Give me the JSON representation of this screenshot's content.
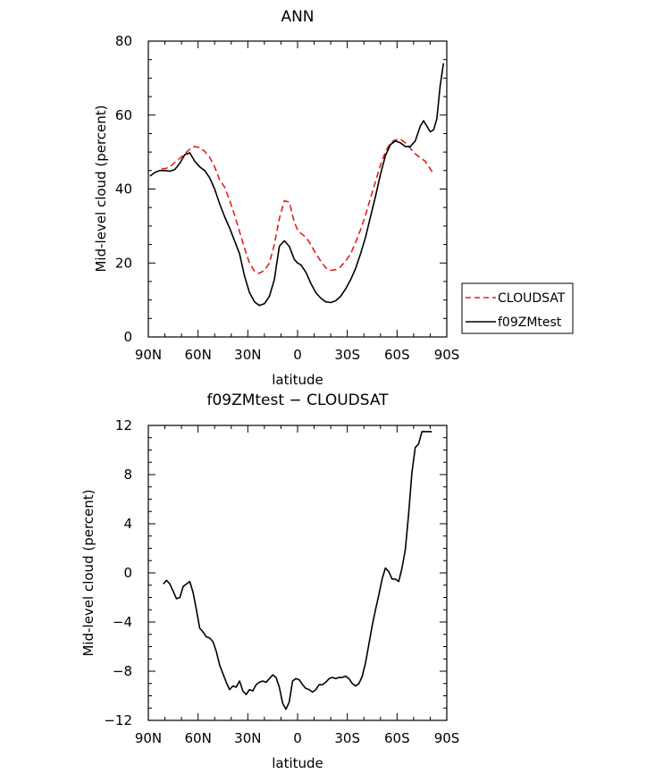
{
  "chart_data": [
    {
      "type": "line",
      "title": "ANN",
      "xlabel": "latitude",
      "ylabel": "Mid-level cloud (percent)",
      "xlim": [
        90,
        -90
      ],
      "ylim": [
        0,
        80
      ],
      "yticks": [
        0,
        20,
        40,
        60,
        80
      ],
      "xticks": [
        {
          "v": 90,
          "label": "90N"
        },
        {
          "v": 60,
          "label": "60N"
        },
        {
          "v": 30,
          "label": "30N"
        },
        {
          "v": 0,
          "label": "0"
        },
        {
          "v": -30,
          "label": "30S"
        },
        {
          "v": -60,
          "label": "60S"
        },
        {
          "v": -90,
          "label": "90S"
        }
      ],
      "legend_position": "outside-right",
      "series": [
        {
          "name": "CLOUDSAT",
          "color": "#e0201b",
          "dash": "dashed",
          "x": [
            82,
            80,
            77,
            74,
            71,
            68,
            65,
            62,
            59,
            56,
            53,
            50,
            47,
            44,
            41,
            38,
            35,
            32,
            29,
            26,
            23,
            20,
            17,
            14,
            11,
            8,
            5,
            2,
            0,
            -2,
            -5,
            -8,
            -11,
            -14,
            -17,
            -20,
            -23,
            -26,
            -29,
            -32,
            -35,
            -38,
            -41,
            -44,
            -47,
            -50,
            -53,
            -56,
            -59,
            -62,
            -65,
            -68,
            -71,
            -74,
            -77,
            -80,
            -82
          ],
          "y": [
            45.5,
            45.5,
            46,
            47.2,
            48.3,
            49.5,
            50.8,
            51.5,
            51.2,
            50.2,
            48.5,
            46,
            42.5,
            40.5,
            37,
            33,
            28.5,
            24,
            20,
            17.8,
            17.2,
            18,
            20,
            25,
            32,
            36.8,
            36.5,
            31,
            29,
            28,
            27,
            25,
            22.5,
            20.5,
            18.7,
            18,
            18.2,
            19,
            20.5,
            22.5,
            25.5,
            29,
            33,
            37.5,
            42,
            46.5,
            50,
            52.5,
            53.3,
            53.5,
            52.5,
            51,
            49.5,
            48.5,
            47.5,
            45.5,
            44
          ]
        },
        {
          "name": "f09ZMtest",
          "color": "#000000",
          "dash": "solid",
          "x": [
            89,
            86,
            83,
            80,
            77,
            74,
            71,
            68,
            65,
            62,
            59,
            56,
            53,
            50,
            47,
            44,
            41,
            38,
            35,
            32,
            29,
            26,
            23,
            20,
            17,
            14,
            11,
            8,
            5,
            2,
            0,
            -2,
            -5,
            -8,
            -11,
            -14,
            -17,
            -20,
            -23,
            -26,
            -29,
            -32,
            -35,
            -38,
            -41,
            -44,
            -47,
            -50,
            -53,
            -56,
            -59,
            -62,
            -65,
            -68,
            -71,
            -74,
            -76,
            -78,
            -80,
            -82,
            -84,
            -86,
            -88
          ],
          "y": [
            43.5,
            44.5,
            45,
            45,
            44.8,
            45.3,
            47,
            49.3,
            49.8,
            47.5,
            46,
            45,
            43,
            40,
            36,
            32.5,
            29.5,
            26,
            22.5,
            16.5,
            12,
            9.5,
            8.5,
            9,
            11,
            15.5,
            24.5,
            26,
            24.5,
            21,
            20,
            19.5,
            17.5,
            14.5,
            12,
            10.5,
            9.5,
            9.3,
            9.8,
            11,
            13,
            15.5,
            18.5,
            22.5,
            27,
            32.5,
            38,
            44,
            49,
            52,
            53,
            52.5,
            51.5,
            51.5,
            53,
            57,
            58.5,
            57,
            55.5,
            56,
            59,
            68,
            74
          ]
        }
      ]
    },
    {
      "type": "line",
      "title": "f09ZMtest  −  CLOUDSAT",
      "xlabel": "latitude",
      "ylabel": "Mid-level cloud (percent)",
      "xlim": [
        90,
        -90
      ],
      "ylim": [
        -12,
        12
      ],
      "yticks": [
        -12,
        -8,
        -4,
        0,
        4,
        8,
        12
      ],
      "ytick_labels": [
        "−12",
        "−8",
        "−4",
        "0",
        "4",
        "8",
        "12"
      ],
      "xticks": [
        {
          "v": 90,
          "label": "90N"
        },
        {
          "v": 60,
          "label": "60N"
        },
        {
          "v": 30,
          "label": "30N"
        },
        {
          "v": 0,
          "label": "0"
        },
        {
          "v": -30,
          "label": "30S"
        },
        {
          "v": -60,
          "label": "60S"
        },
        {
          "v": -90,
          "label": "90S"
        }
      ],
      "series": [
        {
          "color": "#000000",
          "dash": "solid",
          "x": [
            81,
            79,
            77,
            75,
            73,
            71,
            69,
            67,
            65,
            63,
            61,
            59,
            57,
            55,
            53,
            51,
            49,
            47,
            45,
            43,
            41,
            39,
            37,
            35,
            33,
            31,
            29,
            27,
            25,
            23,
            21,
            19,
            17,
            15,
            13,
            11,
            9,
            7,
            5,
            3,
            1,
            -1,
            -3,
            -5,
            -7,
            -9,
            -11,
            -13,
            -15,
            -17,
            -19,
            -21,
            -23,
            -25,
            -27,
            -29,
            -31,
            -33,
            -35,
            -37,
            -39,
            -41,
            -43,
            -45,
            -47,
            -49,
            -51,
            -53,
            -55,
            -57,
            -59,
            -61,
            -63,
            -65,
            -67,
            -69,
            -71,
            -73,
            -75,
            -77,
            -79,
            -81
          ],
          "y": [
            -0.9,
            -0.6,
            -0.9,
            -1.5,
            -2.1,
            -2.0,
            -1.1,
            -0.9,
            -0.7,
            -1.6,
            -3.0,
            -4.5,
            -4.8,
            -5.2,
            -5.3,
            -5.6,
            -6.4,
            -7.5,
            -8.2,
            -8.9,
            -9.5,
            -9.2,
            -9.3,
            -8.8,
            -9.6,
            -9.9,
            -9.5,
            -9.6,
            -9.1,
            -8.9,
            -8.8,
            -8.9,
            -8.6,
            -8.3,
            -8.5,
            -9.3,
            -10.6,
            -11.1,
            -10.5,
            -8.8,
            -8.6,
            -8.7,
            -9.1,
            -9.4,
            -9.5,
            -9.7,
            -9.5,
            -9.1,
            -9.1,
            -8.9,
            -8.6,
            -8.5,
            -8.6,
            -8.5,
            -8.5,
            -8.4,
            -8.6,
            -9.0,
            -9.2,
            -9.0,
            -8.4,
            -7.3,
            -5.8,
            -4.3,
            -3.0,
            -1.8,
            -0.5,
            0.4,
            0.1,
            -0.5,
            -0.5,
            -0.7,
            0.4,
            1.9,
            4.8,
            8.2,
            10.2,
            10.5,
            11.5,
            11.5,
            11.5,
            11.5
          ]
        }
      ]
    }
  ]
}
